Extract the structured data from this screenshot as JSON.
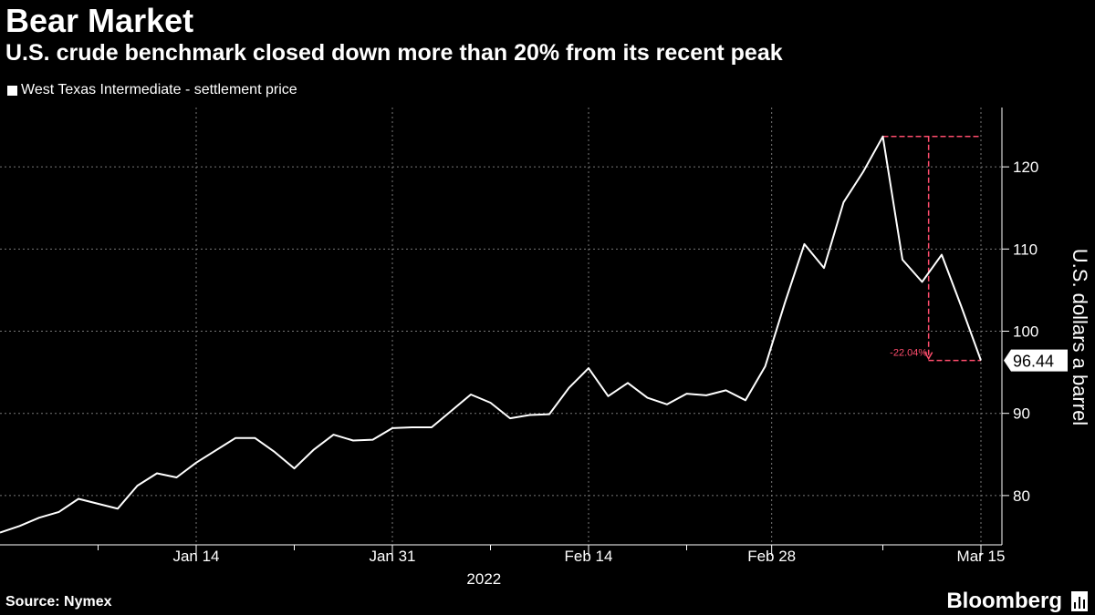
{
  "header": {
    "title": "Bear Market",
    "subtitle": "U.S. crude benchmark closed down more than 20% from its recent peak"
  },
  "legend": {
    "label": "West Texas Intermediate - settlement price"
  },
  "footer": {
    "source": "Source: Nymex",
    "brand": "Bloomberg"
  },
  "colors": {
    "background": "#000000",
    "line": "#ffffff",
    "annotation": "#ff4d6d",
    "grid": "#777777"
  },
  "chart_data": {
    "type": "line",
    "title": "Bear Market",
    "ylabel": "U.S. dollars a barrel",
    "xlabel": "2022",
    "ylim": [
      74,
      127
    ],
    "yticks": [
      80,
      90,
      100,
      110,
      120
    ],
    "xdays": [
      0,
      75
    ],
    "xticks": [
      {
        "label": "Jan 14",
        "day": 15
      },
      {
        "label": "Jan 31",
        "day": 30
      },
      {
        "label": "Feb 14",
        "day": 45
      },
      {
        "label": "Feb 28",
        "day": 59
      },
      {
        "label": "Mar 15",
        "day": 75
      }
    ],
    "minor_x_days": [
      7.5,
      22.5,
      37.5,
      52.5,
      67.5
    ],
    "series": [
      {
        "name": "West Texas Intermediate - settlement price",
        "points": [
          [
            0,
            75.5
          ],
          [
            1.5,
            76.3
          ],
          [
            3,
            77.3
          ],
          [
            4.5,
            78.0
          ],
          [
            6,
            79.6
          ],
          [
            9,
            78.4
          ],
          [
            10.5,
            81.2
          ],
          [
            12,
            82.7
          ],
          [
            13.5,
            82.2
          ],
          [
            15,
            84.0
          ],
          [
            18,
            87.0
          ],
          [
            19.5,
            87.0
          ],
          [
            21,
            85.3
          ],
          [
            22.5,
            83.3
          ],
          [
            24,
            85.6
          ],
          [
            25.5,
            87.4
          ],
          [
            27,
            86.7
          ],
          [
            28.5,
            86.8
          ],
          [
            30,
            88.2
          ],
          [
            31.5,
            88.3
          ],
          [
            33,
            88.3
          ],
          [
            34.5,
            90.3
          ],
          [
            36,
            92.3
          ],
          [
            37.5,
            91.3
          ],
          [
            39,
            89.4
          ],
          [
            40.5,
            89.8
          ],
          [
            42,
            89.9
          ],
          [
            43.5,
            93.1
          ],
          [
            45,
            95.5
          ],
          [
            46.5,
            92.1
          ],
          [
            48,
            93.7
          ],
          [
            49.5,
            91.9
          ],
          [
            51,
            91.1
          ],
          [
            52.5,
            92.4
          ],
          [
            54,
            92.2
          ],
          [
            55.5,
            92.8
          ],
          [
            57,
            91.6
          ],
          [
            58.5,
            95.7
          ],
          [
            60,
            103.4
          ],
          [
            61.5,
            110.6
          ],
          [
            63,
            107.7
          ],
          [
            64.5,
            115.7
          ],
          [
            66,
            119.4
          ],
          [
            67.5,
            123.7
          ],
          [
            69,
            108.7
          ],
          [
            70.5,
            106.0
          ],
          [
            72,
            109.3
          ],
          [
            73.5,
            103.0
          ],
          [
            75,
            96.44
          ]
        ]
      }
    ],
    "last_value": "96.44",
    "annotation": {
      "label": "-22.04%",
      "peak": 123.7,
      "peak_day": 67.5,
      "trough": 96.44,
      "trough_day": 75
    }
  }
}
